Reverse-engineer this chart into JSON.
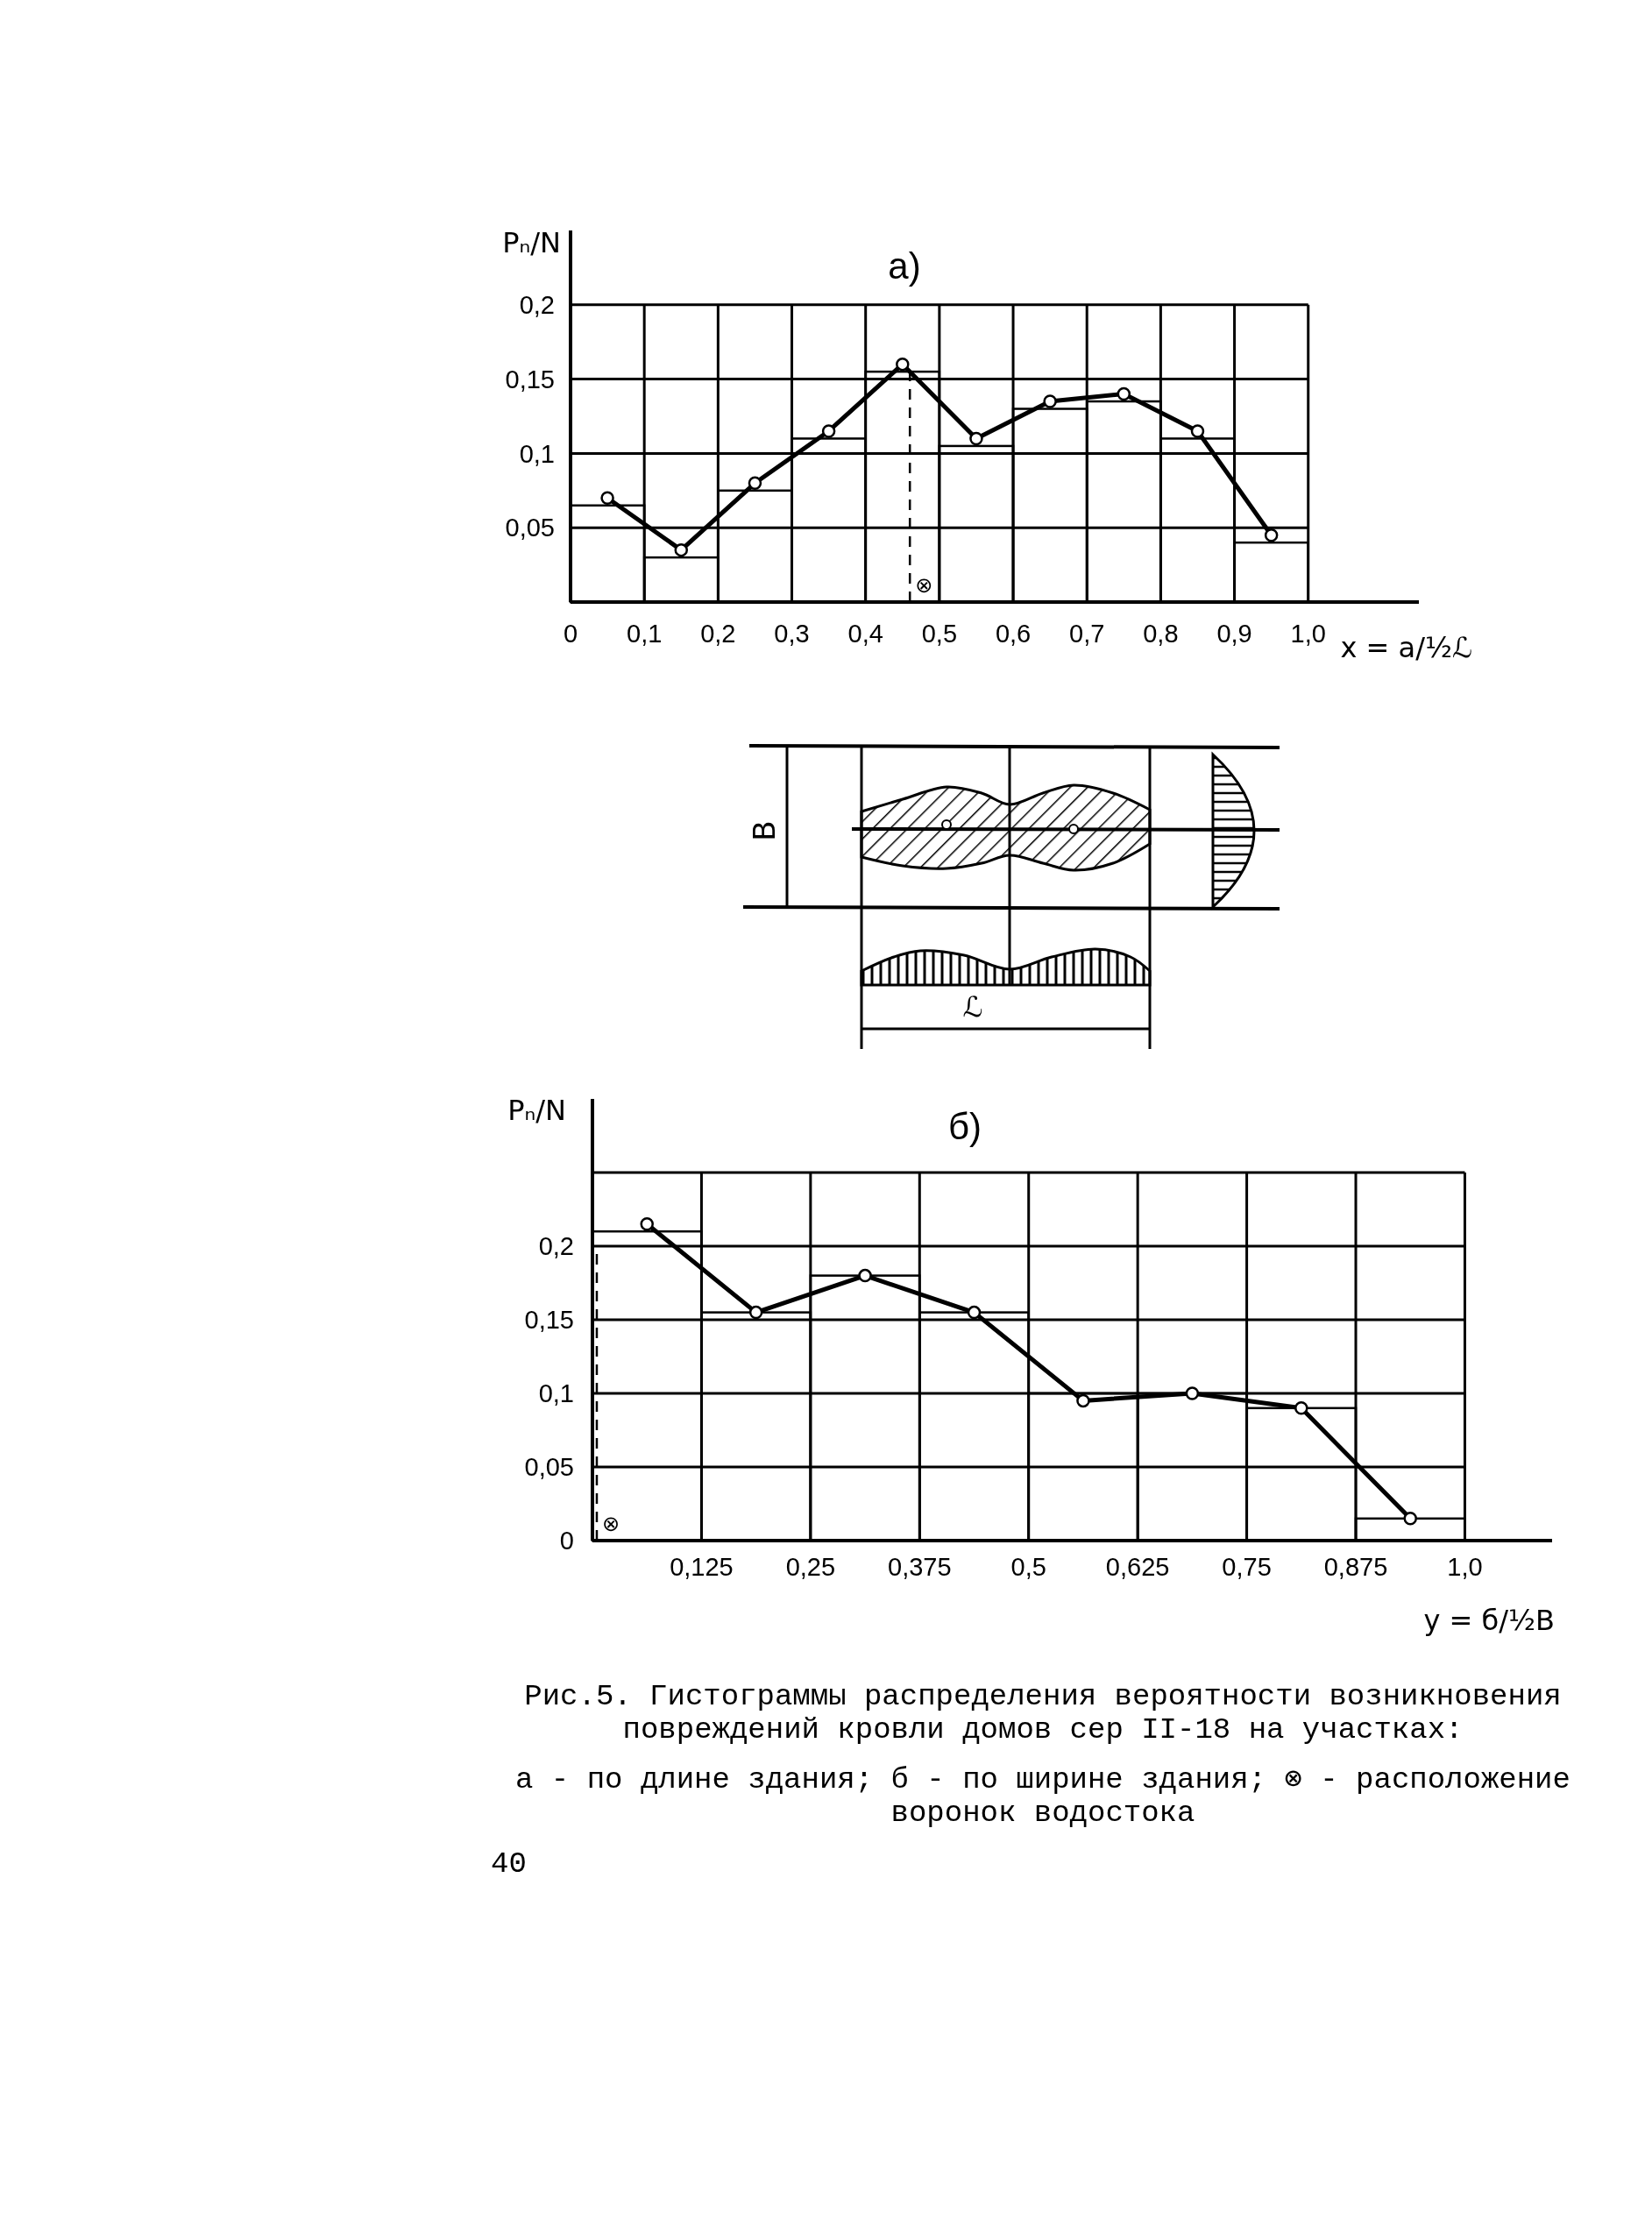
{
  "chart_data": [
    {
      "type": "histogram",
      "title": "а)",
      "xlabel": "x = a/½ℒ",
      "ylabel": "Pₙ/N",
      "xlim": [
        0,
        1.15
      ],
      "ylim": [
        0,
        0.25
      ],
      "xticks": [
        {
          "value": 0,
          "label": "0"
        },
        {
          "value": 0.1,
          "label": "0,1"
        },
        {
          "value": 0.2,
          "label": "0,2"
        },
        {
          "value": 0.3,
          "label": "0,3"
        },
        {
          "value": 0.4,
          "label": "0,4"
        },
        {
          "value": 0.5,
          "label": "0,5"
        },
        {
          "value": 0.6,
          "label": "0,6"
        },
        {
          "value": 0.7,
          "label": "0,7"
        },
        {
          "value": 0.8,
          "label": "0,8"
        },
        {
          "value": 0.9,
          "label": "0,9"
        },
        {
          "value": 1.0,
          "label": "1,0"
        }
      ],
      "yticks": [
        {
          "value": 0,
          "label": null
        },
        {
          "value": 0.05,
          "label": "0,05"
        },
        {
          "value": 0.1,
          "label": "0,1"
        },
        {
          "value": 0.15,
          "label": "0,15"
        },
        {
          "value": 0.2,
          "label": "0,2"
        }
      ],
      "grid": true,
      "marker": "circle",
      "series": [
        {
          "color": "#000000",
          "bins": [
            0,
            0.1,
            0.2,
            0.3,
            0.4,
            0.5,
            0.6,
            0.7,
            0.8,
            0.9,
            1.0
          ],
          "values": [
            0.065,
            0.03,
            0.075,
            0.11,
            0.155,
            0.105,
            0.13,
            0.135,
            0.11,
            0.04
          ]
        },
        {
          "type": "line",
          "color": "#000000",
          "x": [
            0.05,
            0.15,
            0.25,
            0.35,
            0.45,
            0.55,
            0.65,
            0.75,
            0.85,
            0.95
          ],
          "values": [
            0.07,
            0.035,
            0.08,
            0.115,
            0.16,
            0.11,
            0.135,
            0.14,
            0.115,
            0.045
          ]
        }
      ],
      "ref_lines": [
        {
          "axis": "x",
          "value": 0.46,
          "label": "⊗",
          "line_style": "dashed",
          "color": "#000000"
        }
      ]
    },
    {
      "type": "other",
      "annotations": [
        "B",
        "ℒ"
      ]
    },
    {
      "type": "histogram",
      "title": "б)",
      "xlabel": "y = б/½B",
      "ylabel": "Pₙ/N",
      "xlim": [
        0,
        1.1
      ],
      "ylim": [
        0,
        0.3
      ],
      "xticks": [
        {
          "value": 0,
          "label": null
        },
        {
          "value": 0.125,
          "label": "0,125"
        },
        {
          "value": 0.25,
          "label": "0,25"
        },
        {
          "value": 0.375,
          "label": "0,375"
        },
        {
          "value": 0.5,
          "label": "0,5"
        },
        {
          "value": 0.625,
          "label": "0,625"
        },
        {
          "value": 0.75,
          "label": "0,75"
        },
        {
          "value": 0.875,
          "label": "0,875"
        },
        {
          "value": 1.0,
          "label": "1,0"
        }
      ],
      "yticks": [
        {
          "value": 0,
          "label": "0"
        },
        {
          "value": 0.05,
          "label": "0,05"
        },
        {
          "value": 0.1,
          "label": "0,1"
        },
        {
          "value": 0.15,
          "label": "0,15"
        },
        {
          "value": 0.2,
          "label": "0,2"
        },
        {
          "value": 0.25,
          "label": null
        }
      ],
      "grid": true,
      "marker": "circle",
      "series": [
        {
          "color": "#000000",
          "bins": [
            0,
            0.125,
            0.25,
            0.375,
            0.5,
            0.625,
            0.75,
            0.875,
            1.0
          ],
          "values": [
            0.21,
            0.155,
            0.18,
            0.155,
            0.1,
            0.1,
            0.09,
            0.015
          ]
        },
        {
          "type": "line",
          "color": "#000000",
          "x": [
            0.0625,
            0.1875,
            0.3125,
            0.4375,
            0.5625,
            0.6875,
            0.8125,
            0.9375
          ],
          "values": [
            0.215,
            0.155,
            0.18,
            0.155,
            0.095,
            0.1,
            0.09,
            0.015
          ]
        }
      ],
      "ref_lines": [
        {
          "axis": "x",
          "value": 0.005,
          "label": "⊗",
          "line_style": "dashed",
          "color": "#000000"
        }
      ],
      "annotations": [
        "Рис.5. Гистограммы распределения вероятности возникновения повреждений кровли домов сер II-18 на участках:",
        "а - по длине здания; б - по ширине здания; ⊗ - расположение воронок водостока",
        "40"
      ]
    }
  ]
}
